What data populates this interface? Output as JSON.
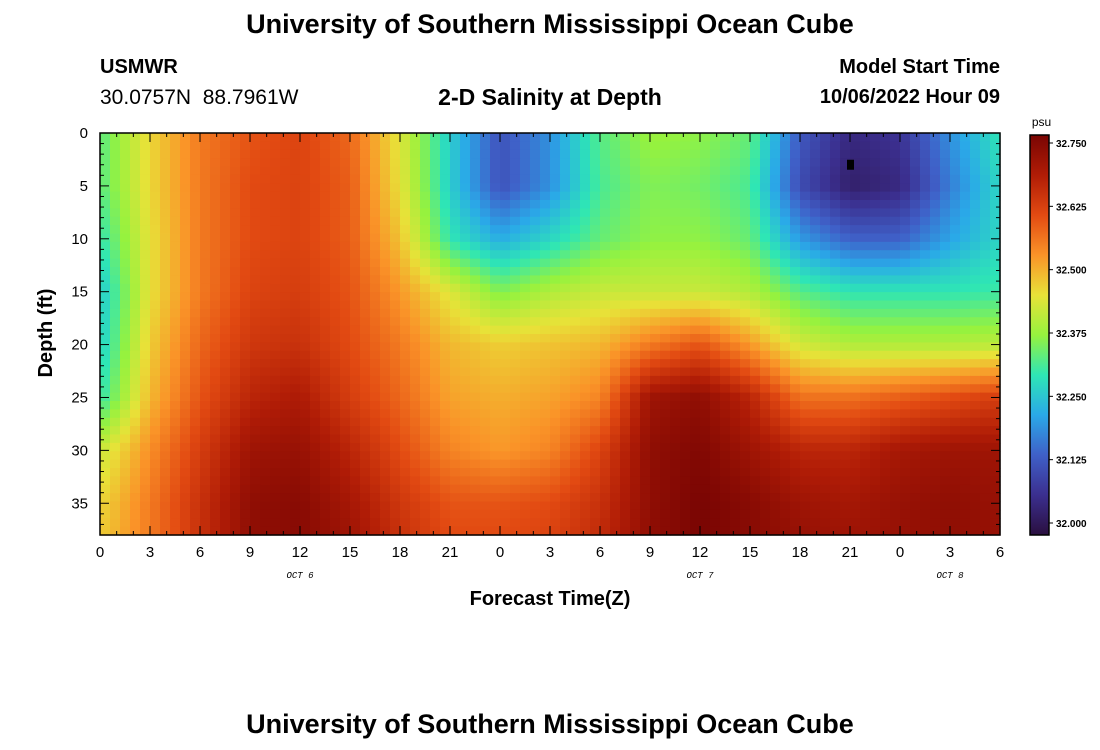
{
  "header": {
    "title": "University of Southern Mississippi Ocean Cube",
    "station": "USMWR",
    "coordinates": "30.0757N  88.7961W",
    "subtitle": "2-D Salinity at Depth",
    "model_start_label": "Model Start Time",
    "model_start_value": "10/06/2022 Hour 09"
  },
  "footer": {
    "title": "University of Southern Mississippi Ocean Cube"
  },
  "chart_data": {
    "type": "heatmap",
    "title": "2-D Salinity at Depth",
    "xlabel": "Forecast Time(Z)",
    "ylabel": "Depth (ft)",
    "x_range_hours": [
      0,
      54
    ],
    "x_tick_labels": [
      "0",
      "3",
      "6",
      "9",
      "12",
      "15",
      "18",
      "21",
      "0",
      "3",
      "6",
      "9",
      "12",
      "15",
      "18",
      "21",
      "0",
      "3",
      "6"
    ],
    "day_labels": [
      {
        "label": "OCT 6",
        "hour": 12
      },
      {
        "label": "OCT 7",
        "hour": 36
      },
      {
        "label": "OCT 8",
        "hour": 51
      }
    ],
    "y_range_ft": [
      0,
      38
    ],
    "y_ticks": [
      0,
      5,
      10,
      15,
      20,
      25,
      30,
      35
    ],
    "y_reversed": true,
    "colorbar": {
      "unit": "psu",
      "min": 32.0,
      "max": 32.75,
      "ticks": [
        "32.000",
        "32.125",
        "32.250",
        "32.375",
        "32.500",
        "32.625",
        "32.750"
      ],
      "colors": [
        "#2a0f3f",
        "#3b2f8f",
        "#3f60c8",
        "#2aa9e8",
        "#2ee6b5",
        "#96f23e",
        "#e8e238",
        "#fa9328",
        "#e24a12",
        "#b01c06",
        "#7a0503"
      ]
    },
    "marker": {
      "hour": 45,
      "depth_ft": 3
    },
    "salinity_grid": {
      "x_hours": [
        0,
        3,
        6,
        9,
        12,
        15,
        18,
        21,
        24,
        27,
        30,
        33,
        36,
        39,
        42,
        45,
        48,
        51,
        54
      ],
      "depths_ft": [
        0,
        5,
        10,
        15,
        20,
        25,
        30,
        35,
        38
      ],
      "values_psu": [
        [
          32.33,
          32.46,
          32.55,
          32.59,
          32.61,
          32.57,
          32.44,
          32.27,
          32.13,
          32.2,
          32.33,
          32.38,
          32.37,
          32.34,
          32.14,
          32.06,
          32.08,
          32.2,
          32.3
        ],
        [
          32.33,
          32.46,
          32.55,
          32.6,
          32.61,
          32.58,
          32.45,
          32.27,
          32.13,
          32.2,
          32.32,
          32.36,
          32.35,
          32.32,
          32.12,
          32.04,
          32.06,
          32.18,
          32.28
        ],
        [
          32.3,
          32.45,
          32.55,
          32.6,
          32.61,
          32.58,
          32.48,
          32.3,
          32.23,
          32.28,
          32.34,
          32.37,
          32.37,
          32.34,
          32.21,
          32.15,
          32.15,
          32.22,
          32.28
        ],
        [
          32.26,
          32.45,
          32.55,
          32.61,
          32.62,
          32.59,
          32.52,
          32.44,
          32.36,
          32.4,
          32.42,
          32.42,
          32.42,
          32.4,
          32.33,
          32.3,
          32.3,
          32.3,
          32.31
        ],
        [
          32.27,
          32.47,
          32.57,
          32.63,
          32.64,
          32.6,
          32.55,
          32.49,
          32.47,
          32.48,
          32.49,
          32.55,
          32.59,
          32.52,
          32.43,
          32.4,
          32.4,
          32.4,
          32.41
        ],
        [
          32.3,
          32.49,
          32.59,
          32.66,
          32.68,
          32.62,
          32.57,
          32.51,
          32.5,
          32.51,
          32.54,
          32.7,
          32.72,
          32.66,
          32.56,
          32.56,
          32.58,
          32.6,
          32.62
        ],
        [
          32.42,
          32.53,
          32.62,
          32.7,
          32.71,
          32.66,
          32.6,
          32.54,
          32.52,
          32.54,
          32.61,
          32.72,
          32.74,
          32.7,
          32.66,
          32.66,
          32.69,
          32.7,
          32.7
        ],
        [
          32.46,
          32.55,
          32.64,
          32.72,
          32.73,
          32.69,
          32.63,
          32.59,
          32.59,
          32.6,
          32.64,
          32.72,
          32.75,
          32.73,
          32.7,
          32.69,
          32.71,
          32.72,
          32.71
        ],
        [
          32.47,
          32.55,
          32.64,
          32.72,
          32.73,
          32.7,
          32.64,
          32.6,
          32.6,
          32.61,
          32.65,
          32.72,
          32.75,
          32.73,
          32.71,
          32.7,
          32.71,
          32.72,
          32.71
        ]
      ]
    }
  }
}
